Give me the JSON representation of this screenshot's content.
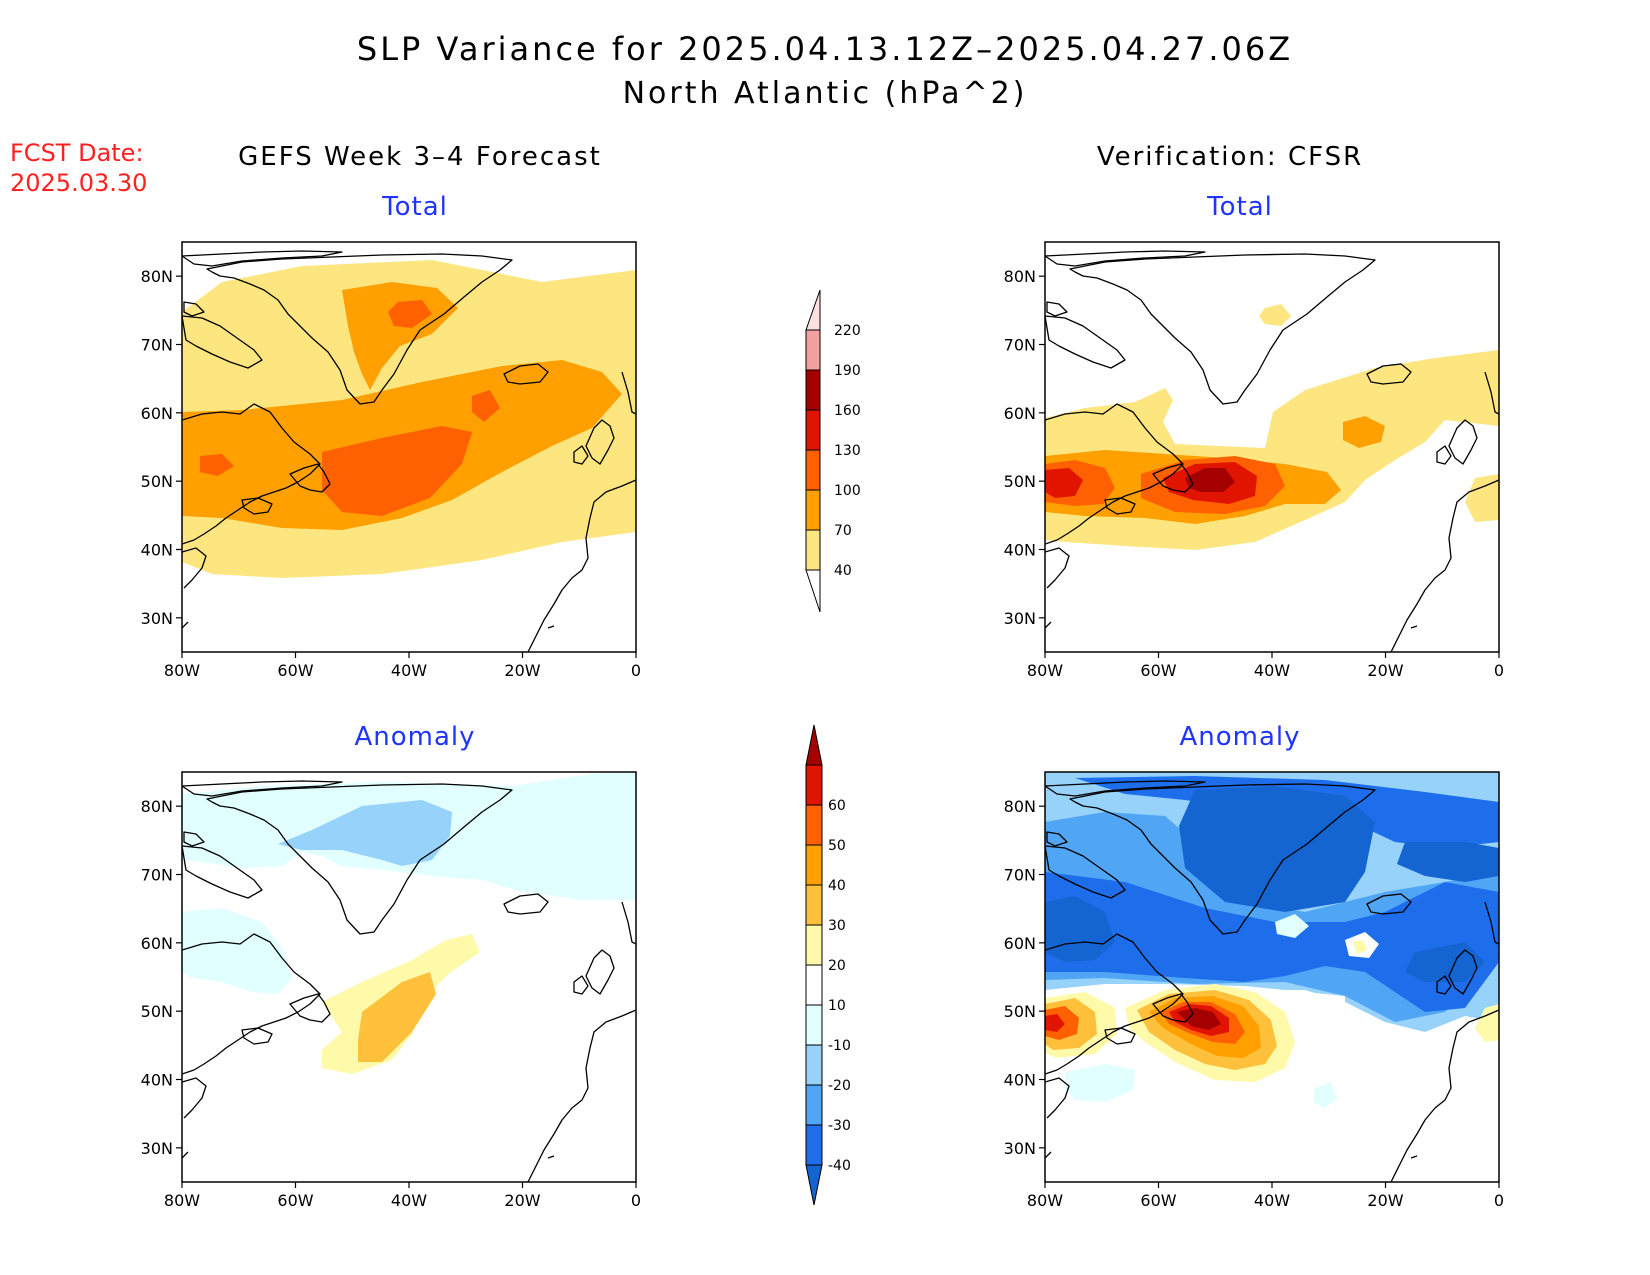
{
  "header": {
    "title_line1": "SLP Variance for 2025.04.13.12Z–2025.04.27.06Z",
    "title_line2": "North Atlantic (hPa^2)",
    "fcst_date_label": "FCST Date:",
    "fcst_date_value": "2025.03.30"
  },
  "columns": {
    "left": "GEFS Week 3–4 Forecast",
    "right": "Verification: CFSR"
  },
  "panels": {
    "fcst_total": {
      "title": "Total"
    },
    "verif_total": {
      "title": "Total"
    },
    "fcst_anom": {
      "title": "Anomaly"
    },
    "verif_anom": {
      "title": "Anomaly"
    }
  },
  "axes": {
    "lon_labels": [
      "80W",
      "60W",
      "40W",
      "20W",
      "0"
    ],
    "lat_labels": [
      "80N",
      "70N",
      "60N",
      "50N",
      "40N",
      "30N"
    ],
    "lon_range": [
      -80,
      0
    ],
    "lat_range": [
      25,
      85
    ]
  },
  "colorbars": {
    "total": {
      "levels": [
        "40",
        "70",
        "100",
        "130",
        "160",
        "190",
        "220"
      ],
      "colors": [
        "#fde680",
        "#ffa000",
        "#ff6000",
        "#e11400",
        "#a50000",
        "#f4a0a0",
        "#fde0e0"
      ]
    },
    "anomaly": {
      "levels": [
        "-40",
        "-30",
        "-20",
        "-10",
        "10",
        "20",
        "30",
        "40",
        "50",
        "60"
      ],
      "colors": [
        "#1464d2",
        "#1e6eeb",
        "#50a5f5",
        "#96d2fa",
        "#e1ffff",
        "#ffffff",
        "#fffaaa",
        "#ffc03c",
        "#ffa000",
        "#ff6000",
        "#e11400",
        "#a50000"
      ]
    }
  },
  "colors": {
    "title_blue": "#2034ff",
    "fcst_red": "#ff2020"
  }
}
